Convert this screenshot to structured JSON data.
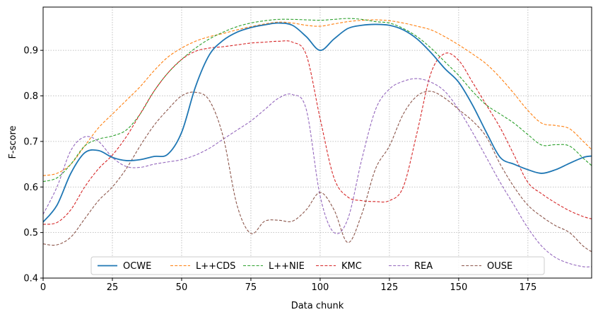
{
  "chart_data": {
    "type": "line",
    "title": "",
    "xlabel": "Data chunk",
    "ylabel": "F-score",
    "xlim": [
      0,
      198
    ],
    "ylim": [
      0.4,
      0.995
    ],
    "xticks": [
      0,
      25,
      50,
      75,
      100,
      125,
      150,
      175
    ],
    "yticks": [
      0.4,
      0.5,
      0.6,
      0.7,
      0.8,
      0.9
    ],
    "grid": true,
    "legend_position": "bottom-center",
    "series": [
      {
        "name": "OCWE",
        "color": "#1f77b4",
        "style": "solid",
        "points": [
          [
            0,
            0.523
          ],
          [
            5,
            0.56
          ],
          [
            10,
            0.63
          ],
          [
            15,
            0.675
          ],
          [
            20,
            0.68
          ],
          [
            25,
            0.665
          ],
          [
            30,
            0.658
          ],
          [
            35,
            0.66
          ],
          [
            40,
            0.667
          ],
          [
            45,
            0.672
          ],
          [
            50,
            0.72
          ],
          [
            55,
            0.82
          ],
          [
            60,
            0.89
          ],
          [
            65,
            0.922
          ],
          [
            70,
            0.94
          ],
          [
            75,
            0.95
          ],
          [
            80,
            0.956
          ],
          [
            85,
            0.96
          ],
          [
            90,
            0.955
          ],
          [
            95,
            0.93
          ],
          [
            100,
            0.9
          ],
          [
            105,
            0.925
          ],
          [
            110,
            0.948
          ],
          [
            115,
            0.955
          ],
          [
            120,
            0.957
          ],
          [
            125,
            0.955
          ],
          [
            130,
            0.945
          ],
          [
            135,
            0.925
          ],
          [
            140,
            0.895
          ],
          [
            145,
            0.86
          ],
          [
            150,
            0.83
          ],
          [
            155,
            0.78
          ],
          [
            160,
            0.72
          ],
          [
            165,
            0.665
          ],
          [
            170,
            0.65
          ],
          [
            175,
            0.638
          ],
          [
            180,
            0.63
          ],
          [
            185,
            0.638
          ],
          [
            190,
            0.652
          ],
          [
            195,
            0.665
          ],
          [
            198,
            0.668
          ]
        ]
      },
      {
        "name": "L++CDS",
        "color": "#ff7f0e",
        "style": "dashed",
        "points": [
          [
            0,
            0.625
          ],
          [
            5,
            0.63
          ],
          [
            10,
            0.65
          ],
          [
            15,
            0.69
          ],
          [
            20,
            0.73
          ],
          [
            25,
            0.76
          ],
          [
            30,
            0.79
          ],
          [
            35,
            0.82
          ],
          [
            40,
            0.855
          ],
          [
            45,
            0.885
          ],
          [
            50,
            0.905
          ],
          [
            55,
            0.92
          ],
          [
            60,
            0.93
          ],
          [
            65,
            0.937
          ],
          [
            70,
            0.945
          ],
          [
            75,
            0.952
          ],
          [
            80,
            0.958
          ],
          [
            85,
            0.962
          ],
          [
            90,
            0.96
          ],
          [
            95,
            0.955
          ],
          [
            100,
            0.953
          ],
          [
            105,
            0.958
          ],
          [
            110,
            0.963
          ],
          [
            115,
            0.966
          ],
          [
            120,
            0.967
          ],
          [
            125,
            0.965
          ],
          [
            130,
            0.96
          ],
          [
            135,
            0.953
          ],
          [
            140,
            0.945
          ],
          [
            145,
            0.93
          ],
          [
            150,
            0.912
          ],
          [
            155,
            0.892
          ],
          [
            160,
            0.87
          ],
          [
            165,
            0.84
          ],
          [
            170,
            0.805
          ],
          [
            175,
            0.768
          ],
          [
            180,
            0.74
          ],
          [
            185,
            0.735
          ],
          [
            190,
            0.728
          ],
          [
            195,
            0.7
          ],
          [
            198,
            0.682
          ]
        ]
      },
      {
        "name": "L++NIE",
        "color": "#2ca02c",
        "style": "dashed",
        "points": [
          [
            0,
            0.612
          ],
          [
            5,
            0.62
          ],
          [
            10,
            0.65
          ],
          [
            15,
            0.69
          ],
          [
            20,
            0.705
          ],
          [
            25,
            0.712
          ],
          [
            30,
            0.725
          ],
          [
            35,
            0.76
          ],
          [
            40,
            0.81
          ],
          [
            45,
            0.85
          ],
          [
            50,
            0.88
          ],
          [
            55,
            0.905
          ],
          [
            60,
            0.925
          ],
          [
            65,
            0.94
          ],
          [
            70,
            0.952
          ],
          [
            75,
            0.96
          ],
          [
            80,
            0.965
          ],
          [
            85,
            0.968
          ],
          [
            90,
            0.968
          ],
          [
            95,
            0.967
          ],
          [
            100,
            0.966
          ],
          [
            105,
            0.968
          ],
          [
            110,
            0.97
          ],
          [
            115,
            0.968
          ],
          [
            120,
            0.963
          ],
          [
            125,
            0.96
          ],
          [
            130,
            0.948
          ],
          [
            135,
            0.93
          ],
          [
            140,
            0.905
          ],
          [
            145,
            0.875
          ],
          [
            150,
            0.845
          ],
          [
            155,
            0.81
          ],
          [
            160,
            0.78
          ],
          [
            165,
            0.76
          ],
          [
            170,
            0.74
          ],
          [
            175,
            0.715
          ],
          [
            180,
            0.692
          ],
          [
            185,
            0.693
          ],
          [
            190,
            0.69
          ],
          [
            195,
            0.663
          ],
          [
            198,
            0.647
          ]
        ]
      },
      {
        "name": "KMC",
        "color": "#d62728",
        "style": "dashed",
        "points": [
          [
            0,
            0.518
          ],
          [
            5,
            0.522
          ],
          [
            10,
            0.55
          ],
          [
            15,
            0.6
          ],
          [
            20,
            0.64
          ],
          [
            25,
            0.67
          ],
          [
            30,
            0.71
          ],
          [
            35,
            0.76
          ],
          [
            40,
            0.81
          ],
          [
            45,
            0.85
          ],
          [
            50,
            0.88
          ],
          [
            55,
            0.898
          ],
          [
            60,
            0.905
          ],
          [
            65,
            0.908
          ],
          [
            70,
            0.912
          ],
          [
            75,
            0.916
          ],
          [
            80,
            0.918
          ],
          [
            85,
            0.92
          ],
          [
            90,
            0.918
          ],
          [
            95,
            0.89
          ],
          [
            100,
            0.75
          ],
          [
            105,
            0.62
          ],
          [
            110,
            0.578
          ],
          [
            115,
            0.57
          ],
          [
            120,
            0.568
          ],
          [
            125,
            0.57
          ],
          [
            130,
            0.6
          ],
          [
            135,
            0.72
          ],
          [
            140,
            0.85
          ],
          [
            145,
            0.893
          ],
          [
            150,
            0.878
          ],
          [
            155,
            0.83
          ],
          [
            160,
            0.78
          ],
          [
            165,
            0.73
          ],
          [
            170,
            0.67
          ],
          [
            175,
            0.61
          ],
          [
            180,
            0.585
          ],
          [
            185,
            0.565
          ],
          [
            190,
            0.548
          ],
          [
            195,
            0.535
          ],
          [
            198,
            0.53
          ]
        ]
      },
      {
        "name": "REA",
        "color": "#9467bd",
        "style": "dashed",
        "points": [
          [
            0,
            0.54
          ],
          [
            5,
            0.6
          ],
          [
            10,
            0.68
          ],
          [
            15,
            0.71
          ],
          [
            20,
            0.7
          ],
          [
            25,
            0.665
          ],
          [
            30,
            0.645
          ],
          [
            35,
            0.643
          ],
          [
            40,
            0.65
          ],
          [
            45,
            0.655
          ],
          [
            50,
            0.66
          ],
          [
            55,
            0.67
          ],
          [
            60,
            0.685
          ],
          [
            65,
            0.705
          ],
          [
            70,
            0.725
          ],
          [
            75,
            0.745
          ],
          [
            80,
            0.77
          ],
          [
            85,
            0.795
          ],
          [
            90,
            0.803
          ],
          [
            95,
            0.77
          ],
          [
            100,
            0.58
          ],
          [
            105,
            0.5
          ],
          [
            110,
            0.53
          ],
          [
            115,
            0.66
          ],
          [
            120,
            0.77
          ],
          [
            125,
            0.815
          ],
          [
            130,
            0.832
          ],
          [
            135,
            0.838
          ],
          [
            140,
            0.83
          ],
          [
            145,
            0.81
          ],
          [
            150,
            0.77
          ],
          [
            155,
            0.72
          ],
          [
            160,
            0.665
          ],
          [
            165,
            0.61
          ],
          [
            170,
            0.56
          ],
          [
            175,
            0.51
          ],
          [
            180,
            0.47
          ],
          [
            185,
            0.445
          ],
          [
            190,
            0.432
          ],
          [
            195,
            0.425
          ],
          [
            198,
            0.425
          ]
        ]
      },
      {
        "name": "OUSE",
        "color": "#8c564b",
        "style": "dashed",
        "points": [
          [
            0,
            0.475
          ],
          [
            5,
            0.473
          ],
          [
            10,
            0.49
          ],
          [
            15,
            0.53
          ],
          [
            20,
            0.57
          ],
          [
            25,
            0.6
          ],
          [
            30,
            0.64
          ],
          [
            35,
            0.69
          ],
          [
            40,
            0.735
          ],
          [
            45,
            0.77
          ],
          [
            50,
            0.8
          ],
          [
            55,
            0.808
          ],
          [
            60,
            0.79
          ],
          [
            65,
            0.71
          ],
          [
            70,
            0.56
          ],
          [
            75,
            0.498
          ],
          [
            80,
            0.525
          ],
          [
            85,
            0.527
          ],
          [
            90,
            0.525
          ],
          [
            95,
            0.55
          ],
          [
            100,
            0.588
          ],
          [
            105,
            0.55
          ],
          [
            110,
            0.478
          ],
          [
            115,
            0.54
          ],
          [
            120,
            0.64
          ],
          [
            125,
            0.69
          ],
          [
            130,
            0.76
          ],
          [
            135,
            0.8
          ],
          [
            140,
            0.81
          ],
          [
            145,
            0.795
          ],
          [
            150,
            0.77
          ],
          [
            155,
            0.745
          ],
          [
            160,
            0.71
          ],
          [
            165,
            0.65
          ],
          [
            170,
            0.6
          ],
          [
            175,
            0.56
          ],
          [
            180,
            0.535
          ],
          [
            185,
            0.515
          ],
          [
            190,
            0.5
          ],
          [
            195,
            0.47
          ],
          [
            198,
            0.458
          ]
        ]
      }
    ]
  }
}
